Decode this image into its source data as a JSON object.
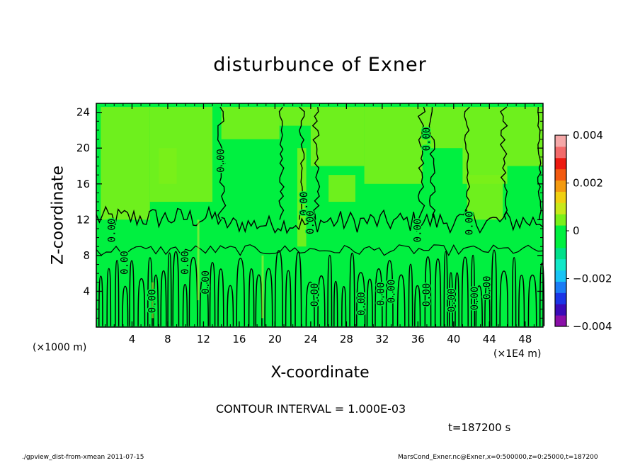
{
  "chart_data": {
    "type": "heatmap",
    "title": "disturbunce of Exner",
    "xlabel": "X-coordinate",
    "ylabel": "Z-coordinate",
    "x_unit_left": "(×1000 m)",
    "x_unit_right": "(×1E4 m)",
    "xlim": [
      0,
      50
    ],
    "ylim": [
      0,
      25
    ],
    "x_ticks": [
      "4",
      "8",
      "12",
      "16",
      "20",
      "24",
      "28",
      "32",
      "36",
      "40",
      "44",
      "48"
    ],
    "y_ticks": [
      "4",
      "8",
      "12",
      "16",
      "20",
      "24"
    ],
    "x_tick_values": [
      4,
      8,
      12,
      16,
      20,
      24,
      28,
      32,
      36,
      40,
      44,
      48
    ],
    "y_tick_values": [
      4,
      8,
      12,
      16,
      20,
      24
    ],
    "contour_labels": [
      {
        "text": "0.00",
        "x": 14,
        "z": 18.6,
        "vertical": true
      },
      {
        "text": "0.00",
        "x": 37,
        "z": 21,
        "vertical": true
      },
      {
        "text": "0.00",
        "x": 23.3,
        "z": 13.8,
        "vertical": true
      },
      {
        "text": "0.00",
        "x": 24.0,
        "z": 11.7,
        "vertical": true
      },
      {
        "text": "0.00",
        "x": 41.8,
        "z": 11.6,
        "vertical": true
      },
      {
        "text": "0.00",
        "x": 36.0,
        "z": 10.8,
        "vertical": true
      },
      {
        "text": "0.00",
        "x": 1.8,
        "z": 10.8,
        "vertical": true
      },
      {
        "text": "0.00",
        "x": 3.2,
        "z": 7.2,
        "vertical": true
      },
      {
        "text": "0.00",
        "x": 10.0,
        "z": 7.2,
        "vertical": true
      },
      {
        "text": "0.00",
        "x": 12.3,
        "z": 5.0,
        "vertical": true
      },
      {
        "text": "0.00",
        "x": 6.3,
        "z": 2.9,
        "vertical": true
      },
      {
        "text": "0.00",
        "x": 24.5,
        "z": 3.6,
        "vertical": true
      },
      {
        "text": "0.00",
        "x": 29.7,
        "z": 2.6,
        "vertical": true
      },
      {
        "text": "0.00",
        "x": 31.9,
        "z": 3.7,
        "vertical": true
      },
      {
        "text": "0.00",
        "x": 33.1,
        "z": 4.0,
        "vertical": true
      },
      {
        "text": "0.00",
        "x": 37.0,
        "z": 3.6,
        "vertical": true
      },
      {
        "text": "0.00",
        "x": 39.8,
        "z": 3.0,
        "vertical": true
      },
      {
        "text": "0.00",
        "x": 42.4,
        "z": 3.2,
        "vertical": true
      },
      {
        "text": "0.00",
        "x": 43.8,
        "z": 4.4,
        "vertical": true
      }
    ],
    "colorbar": {
      "ticks": [
        "0.004",
        "0.002",
        "0",
        "−0.002",
        "−0.004"
      ],
      "tick_values": [
        0.004,
        0.002,
        0,
        -0.002,
        -0.004
      ],
      "min": -0.004,
      "max": 0.004,
      "colors": [
        "#8a0fa8",
        "#3a0bb8",
        "#1b35e6",
        "#1a7cf5",
        "#18c4f5",
        "#12e8c8",
        "#00e08a",
        "#00f040",
        "#00f040",
        "#7af01a",
        "#c8e81a",
        "#f0d010",
        "#f39a10",
        "#f25a10",
        "#ec1a10",
        "#f26a6a",
        "#f5a8a8"
      ]
    },
    "field_colors": {
      "background": "#00f040",
      "positive": "#7af01a",
      "weak_positive": "#b8ec30"
    }
  },
  "labels": {
    "contour_interval": "CONTOUR INTERVAL = 1.000E-03",
    "time": "t=187200 s",
    "footer_left": "./gpview_dist-from-xmean  2011-07-15",
    "footer_right": "MarsCond_Exner.nc@Exner,x=0:500000,z=0:25000,t=187200"
  }
}
